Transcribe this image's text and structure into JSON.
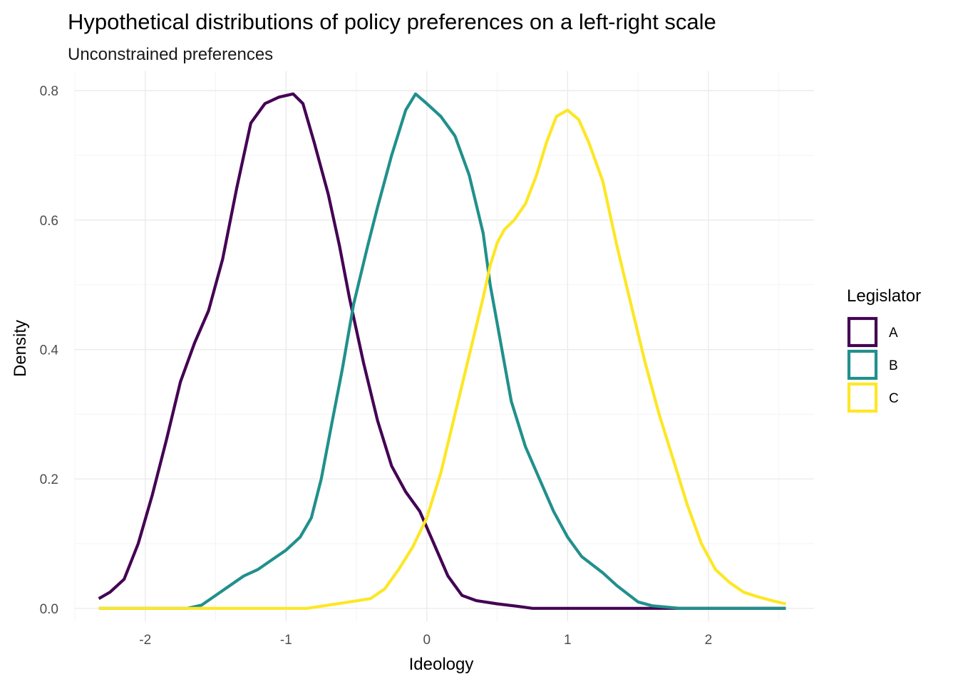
{
  "chart_data": {
    "type": "line",
    "title": "Hypothetical distributions of policy preferences on a left-right scale",
    "subtitle": "Unconstrained preferences",
    "xlabel": "Ideology",
    "ylabel": "Density",
    "xlim": [
      -2.5,
      2.75
    ],
    "ylim": [
      -0.02,
      0.83
    ],
    "x_ticks": [
      -2,
      -1,
      0,
      1,
      2
    ],
    "x_tick_labels": [
      "-2",
      "-1",
      "0",
      "1",
      "2"
    ],
    "y_ticks": [
      0.0,
      0.2,
      0.4,
      0.6,
      0.8
    ],
    "y_tick_labels": [
      "0.0",
      "0.2",
      "0.4",
      "0.6",
      "0.8"
    ],
    "grid": true,
    "legend": {
      "title": "Legislator",
      "position": "right"
    },
    "series": [
      {
        "name": "A",
        "color": "#440154",
        "points": [
          [
            -2.33,
            0.015
          ],
          [
            -2.25,
            0.025
          ],
          [
            -2.15,
            0.045
          ],
          [
            -2.05,
            0.1
          ],
          [
            -1.95,
            0.175
          ],
          [
            -1.85,
            0.26
          ],
          [
            -1.75,
            0.35
          ],
          [
            -1.65,
            0.41
          ],
          [
            -1.55,
            0.46
          ],
          [
            -1.45,
            0.54
          ],
          [
            -1.35,
            0.65
          ],
          [
            -1.25,
            0.75
          ],
          [
            -1.15,
            0.78
          ],
          [
            -1.05,
            0.79
          ],
          [
            -0.95,
            0.795
          ],
          [
            -0.88,
            0.78
          ],
          [
            -0.8,
            0.72
          ],
          [
            -0.7,
            0.64
          ],
          [
            -0.62,
            0.56
          ],
          [
            -0.55,
            0.48
          ],
          [
            -0.45,
            0.38
          ],
          [
            -0.35,
            0.29
          ],
          [
            -0.25,
            0.22
          ],
          [
            -0.15,
            0.18
          ],
          [
            -0.05,
            0.15
          ],
          [
            0.05,
            0.1
          ],
          [
            0.15,
            0.05
          ],
          [
            0.25,
            0.02
          ],
          [
            0.35,
            0.012
          ],
          [
            0.5,
            0.007
          ],
          [
            0.65,
            0.003
          ],
          [
            0.75,
            0.0
          ],
          [
            1.0,
            0.0
          ],
          [
            1.5,
            0.0
          ],
          [
            2.0,
            0.0
          ],
          [
            2.55,
            0.0
          ]
        ]
      },
      {
        "name": "B",
        "color": "#21908C",
        "points": [
          [
            -2.33,
            0.0
          ],
          [
            -2.0,
            0.0
          ],
          [
            -1.7,
            0.0
          ],
          [
            -1.6,
            0.005
          ],
          [
            -1.5,
            0.02
          ],
          [
            -1.4,
            0.035
          ],
          [
            -1.3,
            0.05
          ],
          [
            -1.2,
            0.06
          ],
          [
            -1.1,
            0.075
          ],
          [
            -1.0,
            0.09
          ],
          [
            -0.9,
            0.11
          ],
          [
            -0.82,
            0.14
          ],
          [
            -0.75,
            0.2
          ],
          [
            -0.68,
            0.28
          ],
          [
            -0.6,
            0.37
          ],
          [
            -0.52,
            0.47
          ],
          [
            -0.42,
            0.56
          ],
          [
            -0.35,
            0.62
          ],
          [
            -0.25,
            0.7
          ],
          [
            -0.15,
            0.77
          ],
          [
            -0.08,
            0.795
          ],
          [
            0.0,
            0.78
          ],
          [
            0.1,
            0.76
          ],
          [
            0.2,
            0.73
          ],
          [
            0.3,
            0.67
          ],
          [
            0.4,
            0.58
          ],
          [
            0.45,
            0.5
          ],
          [
            0.5,
            0.44
          ],
          [
            0.55,
            0.38
          ],
          [
            0.6,
            0.32
          ],
          [
            0.7,
            0.25
          ],
          [
            0.8,
            0.2
          ],
          [
            0.9,
            0.15
          ],
          [
            1.0,
            0.11
          ],
          [
            1.1,
            0.08
          ],
          [
            1.25,
            0.055
          ],
          [
            1.35,
            0.035
          ],
          [
            1.5,
            0.01
          ],
          [
            1.6,
            0.004
          ],
          [
            1.8,
            0.0
          ],
          [
            2.0,
            0.0
          ],
          [
            2.55,
            0.0
          ]
        ]
      },
      {
        "name": "C",
        "color": "#FDE725",
        "points": [
          [
            -2.33,
            0.0
          ],
          [
            -1.5,
            0.0
          ],
          [
            -1.0,
            0.0
          ],
          [
            -0.85,
            0.0
          ],
          [
            -0.7,
            0.005
          ],
          [
            -0.55,
            0.01
          ],
          [
            -0.4,
            0.015
          ],
          [
            -0.3,
            0.03
          ],
          [
            -0.2,
            0.06
          ],
          [
            -0.1,
            0.095
          ],
          [
            0.0,
            0.14
          ],
          [
            0.1,
            0.21
          ],
          [
            0.2,
            0.3
          ],
          [
            0.3,
            0.39
          ],
          [
            0.4,
            0.48
          ],
          [
            0.45,
            0.53
          ],
          [
            0.5,
            0.565
          ],
          [
            0.55,
            0.585
          ],
          [
            0.62,
            0.6
          ],
          [
            0.7,
            0.625
          ],
          [
            0.78,
            0.67
          ],
          [
            0.85,
            0.72
          ],
          [
            0.92,
            0.76
          ],
          [
            1.0,
            0.77
          ],
          [
            1.08,
            0.755
          ],
          [
            1.15,
            0.72
          ],
          [
            1.25,
            0.66
          ],
          [
            1.35,
            0.56
          ],
          [
            1.45,
            0.47
          ],
          [
            1.55,
            0.38
          ],
          [
            1.65,
            0.3
          ],
          [
            1.75,
            0.23
          ],
          [
            1.85,
            0.16
          ],
          [
            1.95,
            0.1
          ],
          [
            2.05,
            0.06
          ],
          [
            2.15,
            0.04
          ],
          [
            2.25,
            0.025
          ],
          [
            2.35,
            0.018
          ],
          [
            2.45,
            0.012
          ],
          [
            2.55,
            0.007
          ]
        ]
      }
    ]
  }
}
